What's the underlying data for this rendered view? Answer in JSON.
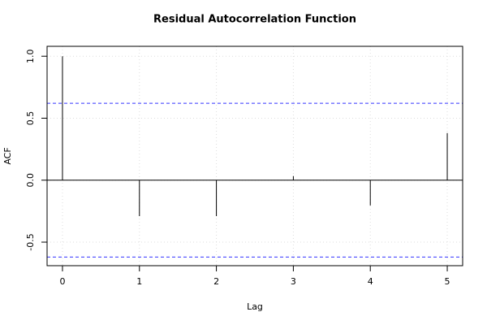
{
  "chart_data": {
    "type": "stem",
    "title": "Residual Autocorrelation Function",
    "x_label": "Lag",
    "y_label": "ACF",
    "x": [
      0,
      1,
      2,
      3,
      4,
      5
    ],
    "values": [
      1.0,
      -0.29,
      -0.29,
      0.033,
      -0.204,
      0.38
    ],
    "color": "#000000",
    "confidence_bounds": [
      0.62,
      -0.62
    ],
    "bound_color": "#3333ff",
    "xlim": [
      -0.2,
      5.2
    ],
    "xticks": [
      0,
      1,
      2,
      3,
      4,
      5
    ],
    "ylim": [
      -0.69,
      1.08
    ],
    "yticks": [
      -0.5,
      {
        "value": 0,
        "label": "0.0"
      },
      0.5,
      {
        "value": 1,
        "label": "1.0"
      }
    ],
    "grid": true
  }
}
